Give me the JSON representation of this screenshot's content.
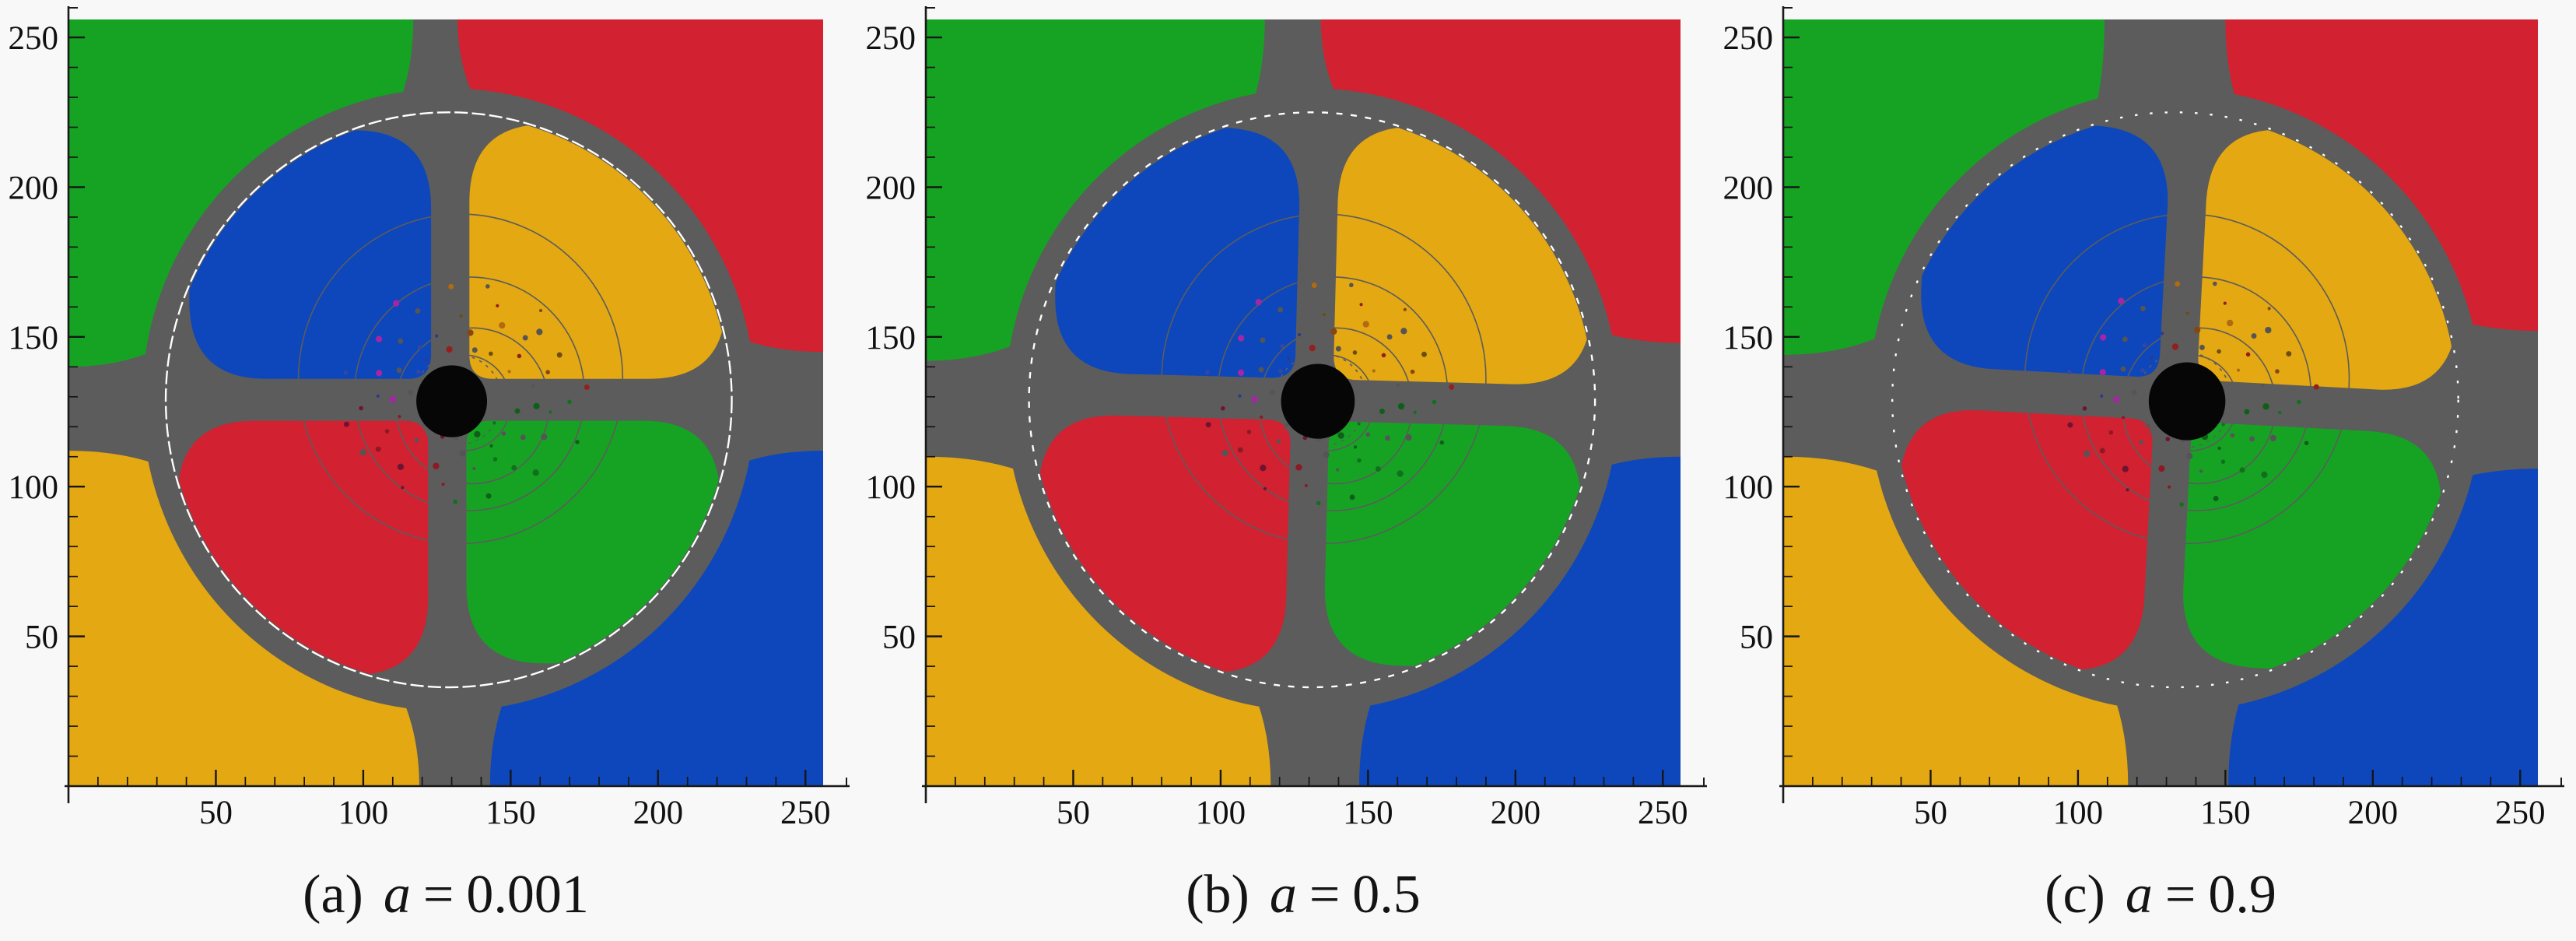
{
  "figure": {
    "background": "#f8f8f8",
    "panels": [
      {
        "id": "a",
        "prefix": "(a)",
        "var": "a",
        "eq": "=",
        "value": "0.001"
      },
      {
        "id": "b",
        "prefix": "(b)",
        "var": "a",
        "eq": "=",
        "value": "0.5"
      },
      {
        "id": "c",
        "prefix": "(c)",
        "var": "a",
        "eq": "=",
        "value": "0.9"
      }
    ]
  },
  "chart_data": [
    {
      "type": "heatmap",
      "title": "(a) a = 0.001",
      "spin_parameter": 0.001,
      "x": {
        "range": [
          0,
          256
        ],
        "major_ticks": [
          50,
          100,
          150,
          200,
          250
        ],
        "minor_step": 10
      },
      "y": {
        "range": [
          0,
          256
        ],
        "major_ticks": [
          50,
          100,
          150,
          200,
          250
        ],
        "minor_step": 10
      },
      "legend": {
        "green": "#16a324",
        "red": "#d22130",
        "blue": "#0d47bb",
        "yellow": "#e3a812",
        "escape_gray": "#5c5c5c",
        "shadow_black": "#060606",
        "ring_white": "#ffffff"
      },
      "features": {
        "center": [
          129,
          127
        ],
        "outer_radius": 104,
        "ring_radius": 96,
        "ring_dash": [
          4.5,
          1.4
        ],
        "shadow_center": [
          130,
          127.5
        ],
        "shadow_radius": 12,
        "wedge_top": [
          117,
          132
        ],
        "wedge_bottom": [
          119,
          143
        ],
        "wedge_left": [
          116,
          144
        ],
        "wedge_right": [
          111,
          144
        ],
        "right_funnel": [
          50,
          38
        ],
        "lobe_rotation": 0
      }
    },
    {
      "type": "heatmap",
      "title": "(b) a = 0.5",
      "spin_parameter": 0.5,
      "x": {
        "range": [
          0,
          256
        ],
        "major_ticks": [
          50,
          100,
          150,
          200,
          250
        ],
        "minor_step": 10
      },
      "y": {
        "range": [
          0,
          256
        ],
        "major_ticks": [
          50,
          100,
          150,
          200,
          250
        ],
        "minor_step": 10
      },
      "legend": {
        "green": "#16a324",
        "red": "#d22130",
        "blue": "#0d47bb",
        "yellow": "#e3a812",
        "escape_gray": "#5c5c5c",
        "shadow_black": "#060606",
        "ring_white": "#ffffff"
      },
      "features": {
        "center": [
          131,
          127
        ],
        "outer_radius": 104,
        "ring_radius": 96,
        "ring_dash": [
          2.1,
          2.8
        ],
        "shadow_center": [
          133,
          127.5
        ],
        "shadow_radius": 12.5,
        "wedge_top": [
          115,
          134
        ],
        "wedge_bottom": [
          117,
          147
        ],
        "wedge_left": [
          114,
          146
        ],
        "wedge_right": [
          108,
          146
        ],
        "right_funnel": [
          54,
          40
        ],
        "lobe_rotation": 1.5
      }
    },
    {
      "type": "heatmap",
      "title": "(c) a = 0.9",
      "spin_parameter": 0.9,
      "x": {
        "range": [
          0,
          256
        ],
        "major_ticks": [
          50,
          100,
          150,
          200,
          250
        ],
        "minor_step": 10
      },
      "y": {
        "range": [
          0,
          256
        ],
        "major_ticks": [
          50,
          100,
          150,
          200,
          250
        ],
        "minor_step": 10
      },
      "legend": {
        "green": "#16a324",
        "red": "#d22130",
        "blue": "#0d47bb",
        "yellow": "#e3a812",
        "escape_gray": "#5c5c5c",
        "shadow_black": "#060606",
        "ring_white": "#ffffff"
      },
      "features": {
        "center": [
          133,
          127
        ],
        "outer_radius": 104,
        "ring_radius": 96,
        "ring_dash": [
          0.9,
          4.2
        ],
        "shadow_center": [
          137,
          127.5
        ],
        "shadow_radius": 13,
        "wedge_top": [
          109,
          150
        ],
        "wedge_bottom": [
          117,
          151
        ],
        "wedge_left": [
          112,
          146
        ],
        "wedge_right": [
          104,
          150
        ],
        "right_funnel": [
          64,
          44
        ],
        "lobe_rotation": 3
      }
    }
  ]
}
